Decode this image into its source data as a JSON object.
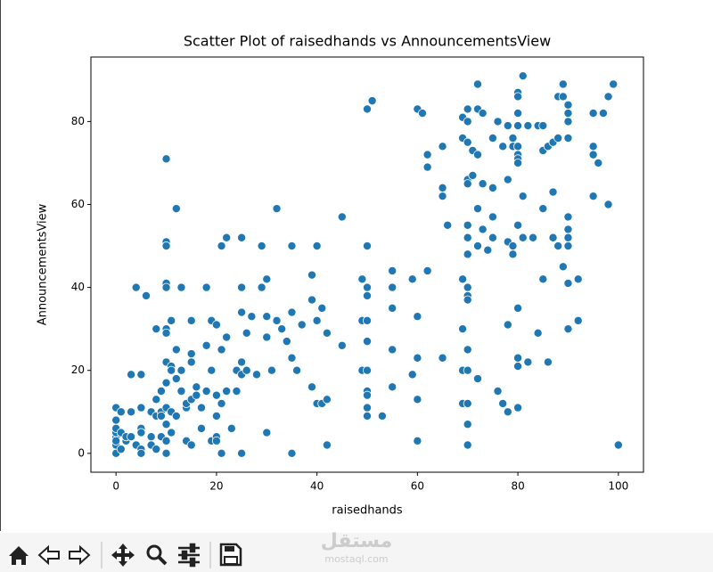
{
  "chart_data": {
    "type": "scatter",
    "title": "Scatter Plot of raisedhands vs AnnouncementsView",
    "xlabel": "raisedhands",
    "ylabel": "AnnouncementsView",
    "color": "#1f77b4",
    "xlim": [
      -5,
      105
    ],
    "ylim": [
      -4.55,
      95.55
    ],
    "xticks": [
      0,
      20,
      40,
      60,
      80,
      100
    ],
    "yticks": [
      0,
      20,
      40,
      60,
      80
    ],
    "grid": false,
    "x": [
      0,
      0,
      0,
      0,
      0,
      0,
      0,
      0,
      1,
      1,
      1,
      2,
      2,
      3,
      3,
      3,
      4,
      4,
      5,
      5,
      5,
      5,
      5,
      5,
      6,
      7,
      7,
      7,
      8,
      8,
      8,
      8,
      9,
      9,
      9,
      9,
      10,
      10,
      10,
      10,
      10,
      10,
      10,
      10,
      10,
      10,
      10,
      10,
      10,
      11,
      11,
      11,
      11,
      11,
      12,
      12,
      12,
      12,
      13,
      13,
      13,
      14,
      14,
      14,
      15,
      15,
      15,
      15,
      15,
      16,
      16,
      17,
      17,
      18,
      18,
      18,
      19,
      19,
      19,
      20,
      20,
      20,
      20,
      20,
      21,
      21,
      21,
      21,
      22,
      22,
      22,
      23,
      24,
      24,
      25,
      25,
      25,
      25,
      25,
      25,
      26,
      26,
      27,
      28,
      29,
      29,
      30,
      30,
      30,
      30,
      31,
      32,
      32,
      33,
      34,
      35,
      35,
      35,
      35,
      36,
      37,
      39,
      39,
      39,
      40,
      40,
      40,
      41,
      41,
      42,
      42,
      42,
      45,
      45,
      49,
      49,
      49,
      50,
      50,
      50,
      50,
      50,
      50,
      50,
      50,
      50,
      50,
      50,
      51,
      53,
      55,
      55,
      55,
      55,
      55,
      59,
      59,
      60,
      60,
      60,
      60,
      60,
      61,
      62,
      62,
      62,
      65,
      65,
      65,
      65,
      66,
      69,
      69,
      69,
      69,
      69,
      69,
      70,
      70,
      70,
      70,
      70,
      70,
      70,
      70,
      70,
      70,
      70,
      70,
      70,
      70,
      70,
      70,
      71,
      71,
      72,
      72,
      72,
      72,
      72,
      72,
      73,
      73,
      73,
      74,
      75,
      75,
      75,
      75,
      76,
      76,
      77,
      77,
      78,
      78,
      78,
      78,
      78,
      79,
      79,
      79,
      79,
      80,
      80,
      80,
      80,
      80,
      80,
      80,
      80,
      80,
      80,
      80,
      80,
      80,
      81,
      81,
      81,
      82,
      82,
      83,
      84,
      84,
      85,
      85,
      85,
      85,
      86,
      86,
      87,
      87,
      87,
      88,
      88,
      88,
      89,
      89,
      89,
      90,
      90,
      90,
      90,
      90,
      90,
      90,
      90,
      90,
      90,
      92,
      92,
      95,
      95,
      95,
      95,
      96,
      97,
      98,
      98,
      99,
      100
    ],
    "values": [
      0,
      2,
      4,
      5,
      6,
      8,
      11,
      3,
      5,
      1,
      10,
      3,
      4,
      19,
      10,
      4,
      40,
      2,
      19,
      11,
      6,
      5,
      1,
      0,
      38,
      2,
      10,
      4,
      30,
      13,
      9,
      1,
      15,
      10,
      4,
      9,
      71,
      51,
      50,
      41,
      40,
      30,
      29,
      22,
      17,
      11,
      7,
      3,
      0,
      32,
      21,
      20,
      10,
      5,
      59,
      25,
      18,
      9,
      40,
      20,
      15,
      3,
      11,
      12,
      22,
      32,
      24,
      13,
      2,
      16,
      14,
      6,
      11,
      26,
      40,
      15,
      3,
      32,
      20,
      31,
      14,
      9,
      4,
      3,
      25,
      50,
      12,
      0,
      52,
      28,
      15,
      6,
      20,
      15,
      52,
      40,
      34,
      22,
      19,
      0,
      29,
      20,
      33,
      19,
      40,
      50,
      42,
      33,
      28,
      5,
      20,
      59,
      32,
      30,
      27,
      50,
      34,
      23,
      0,
      20,
      31,
      43,
      37,
      16,
      50,
      32,
      12,
      12,
      35,
      13,
      2,
      29,
      57,
      26,
      42,
      32,
      20,
      83,
      50,
      40,
      32,
      38,
      27,
      20,
      15,
      14,
      11,
      9,
      85,
      9,
      44,
      40,
      35,
      25,
      16,
      42,
      19,
      83,
      33,
      23,
      13,
      3,
      82,
      72,
      69,
      44,
      74,
      64,
      62,
      23,
      55,
      81,
      76,
      42,
      30,
      20,
      12,
      83,
      80,
      75,
      66,
      65,
      55,
      52,
      48,
      40,
      38,
      37,
      25,
      20,
      12,
      7,
      2,
      73,
      67,
      89,
      83,
      72,
      59,
      50,
      18,
      82,
      65,
      54,
      49,
      57,
      52,
      76,
      64,
      15,
      80,
      12,
      74,
      79,
      66,
      51,
      31,
      10,
      74,
      76,
      50,
      48,
      87,
      86,
      82,
      79,
      74,
      72,
      71,
      70,
      55,
      35,
      23,
      21,
      11,
      91,
      62,
      52,
      79,
      22,
      52,
      79,
      29,
      79,
      73,
      59,
      42,
      22,
      74,
      63,
      52,
      75,
      86,
      76,
      50,
      89,
      86,
      45,
      84,
      82,
      80,
      76,
      57,
      54,
      52,
      50,
      41,
      30,
      42,
      32,
      82,
      74,
      72,
      62,
      70,
      82,
      86,
      60,
      89,
      2
    ]
  },
  "watermark": {
    "arabic": "مستقل",
    "latin": "mostaql.com"
  }
}
